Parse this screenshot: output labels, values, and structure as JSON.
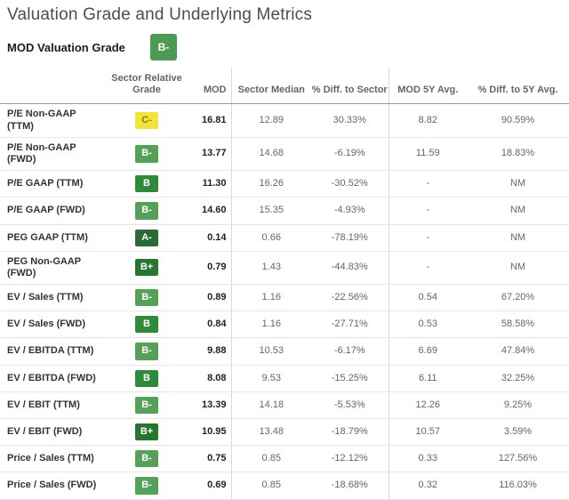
{
  "page": {
    "title": "Valuation Grade and Underlying Metrics",
    "grade_label": "MOD Valuation Grade",
    "overall_grade": "B-"
  },
  "table": {
    "columns": [
      "",
      "Sector Relative Grade",
      "MOD",
      "Sector Median",
      "% Diff. to Sector",
      "MOD 5Y Avg.",
      "% Diff. to 5Y Avg."
    ],
    "rows": [
      {
        "metric": "P/E Non-GAAP (TTM)",
        "grade": "C-",
        "mod": "16.81",
        "sector_median": "12.89",
        "diff_sector": "30.33%",
        "mod_5y": "8.82",
        "diff_5y": "90.59%"
      },
      {
        "metric": "P/E Non-GAAP (FWD)",
        "grade": "B-",
        "mod": "13.77",
        "sector_median": "14.68",
        "diff_sector": "-6.19%",
        "mod_5y": "11.59",
        "diff_5y": "18.83%"
      },
      {
        "metric": "P/E GAAP (TTM)",
        "grade": "B",
        "mod": "11.30",
        "sector_median": "16.26",
        "diff_sector": "-30.52%",
        "mod_5y": "-",
        "diff_5y": "NM"
      },
      {
        "metric": "P/E GAAP (FWD)",
        "grade": "B-",
        "mod": "14.60",
        "sector_median": "15.35",
        "diff_sector": "-4.93%",
        "mod_5y": "-",
        "diff_5y": "NM"
      },
      {
        "metric": "PEG GAAP (TTM)",
        "grade": "A-",
        "mod": "0.14",
        "sector_median": "0.66",
        "diff_sector": "-78.19%",
        "mod_5y": "-",
        "diff_5y": "NM"
      },
      {
        "metric": "PEG Non-GAAP (FWD)",
        "grade": "B+",
        "mod": "0.79",
        "sector_median": "1.43",
        "diff_sector": "-44.83%",
        "mod_5y": "-",
        "diff_5y": "NM"
      },
      {
        "metric": "EV / Sales (TTM)",
        "grade": "B-",
        "mod": "0.89",
        "sector_median": "1.16",
        "diff_sector": "-22.56%",
        "mod_5y": "0.54",
        "diff_5y": "67.20%"
      },
      {
        "metric": "EV / Sales (FWD)",
        "grade": "B",
        "mod": "0.84",
        "sector_median": "1.16",
        "diff_sector": "-27.71%",
        "mod_5y": "0.53",
        "diff_5y": "58.58%"
      },
      {
        "metric": "EV / EBITDA (TTM)",
        "grade": "B-",
        "mod": "9.88",
        "sector_median": "10.53",
        "diff_sector": "-6.17%",
        "mod_5y": "6.69",
        "diff_5y": "47.84%"
      },
      {
        "metric": "EV / EBITDA (FWD)",
        "grade": "B",
        "mod": "8.08",
        "sector_median": "9.53",
        "diff_sector": "-15.25%",
        "mod_5y": "6.11",
        "diff_5y": "32.25%"
      },
      {
        "metric": "EV / EBIT (TTM)",
        "grade": "B-",
        "mod": "13.39",
        "sector_median": "14.18",
        "diff_sector": "-5.53%",
        "mod_5y": "12.26",
        "diff_5y": "9.25%"
      },
      {
        "metric": "EV / EBIT (FWD)",
        "grade": "B+",
        "mod": "10.95",
        "sector_median": "13.48",
        "diff_sector": "-18.79%",
        "mod_5y": "10.57",
        "diff_5y": "3.59%"
      },
      {
        "metric": "Price / Sales (TTM)",
        "grade": "B-",
        "mod": "0.75",
        "sector_median": "0.85",
        "diff_sector": "-12.12%",
        "mod_5y": "0.33",
        "diff_5y": "127.56%"
      },
      {
        "metric": "Price / Sales (FWD)",
        "grade": "B-",
        "mod": "0.69",
        "sector_median": "0.85",
        "diff_sector": "-18.68%",
        "mod_5y": "0.32",
        "diff_5y": "116.03%"
      }
    ]
  },
  "colors": {
    "overall_badge": {
      "bg": "#4C9A54",
      "fg": "#FFFFFF"
    },
    "grade_badges": {
      "A-": {
        "bg": "#2B6B33",
        "fg": "#FFFFFF"
      },
      "B+": {
        "bg": "#27762F",
        "fg": "#FFFFFF"
      },
      "B": {
        "bg": "#318A39",
        "fg": "#FFFFFF"
      },
      "B-": {
        "bg": "#55A159",
        "fg": "#FFFFFF"
      },
      "C-": {
        "bg": "#F3E43B",
        "fg": "#8A7D1E"
      }
    }
  }
}
